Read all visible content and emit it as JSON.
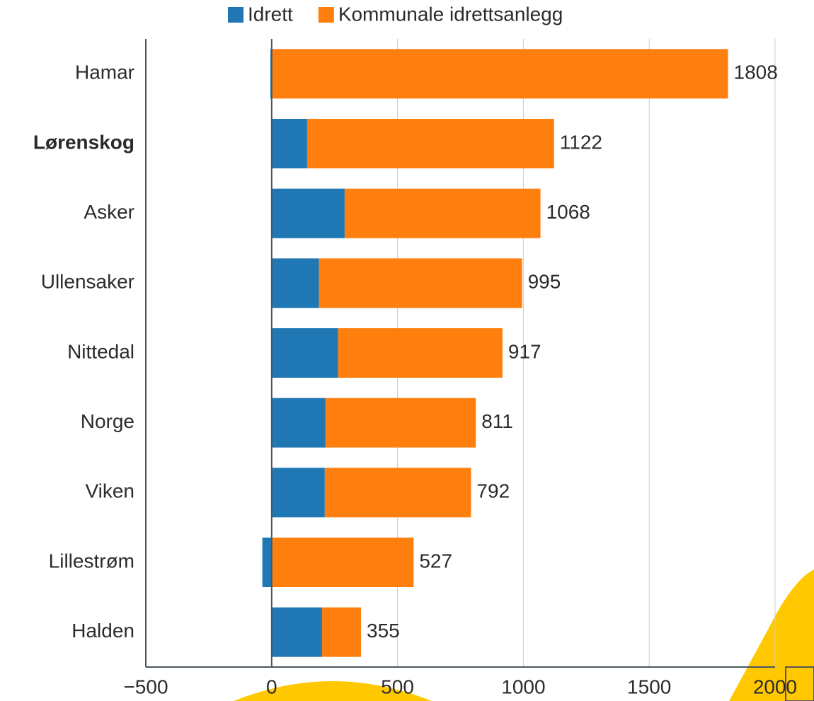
{
  "chart_data": {
    "type": "stacked-bar-horizontal",
    "categories": [
      "Hamar",
      "Lørenskog",
      "Asker",
      "Ullensaker",
      "Nittedal",
      "Norge",
      "Viken",
      "Lillestrøm",
      "Halden"
    ],
    "bold_category_index": 1,
    "series": [
      {
        "name": "Idrett",
        "color": "#1f77b4",
        "values": [
          -5,
          141,
          290,
          188,
          264,
          214,
          211,
          -37,
          200
        ]
      },
      {
        "name": "Kommunale idrettsanlegg",
        "color": "#ff7f0e",
        "values": [
          1813,
          981,
          778,
          807,
          653,
          597,
          581,
          564,
          155
        ]
      }
    ],
    "totals": [
      1808,
      1122,
      1068,
      995,
      917,
      811,
      792,
      527,
      355
    ],
    "xlim": [
      -500,
      2000
    ],
    "xticks": [
      {
        "value": -500,
        "label": "−500"
      },
      0,
      500,
      1000,
      1500,
      2000
    ],
    "grid": true,
    "legend": "top"
  }
}
